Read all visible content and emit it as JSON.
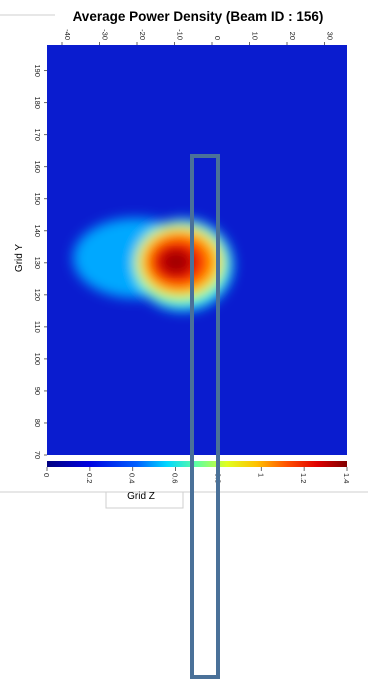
{
  "chart_data": {
    "type": "heatmap",
    "title": "Average Power Density (Beam ID : 156)",
    "xlabel": "Grid Z",
    "ylabel": "Grid Y",
    "xlim": [
      -44,
      36
    ],
    "ylim": [
      70,
      198
    ],
    "x_ticks": [
      "-40",
      "-30",
      "-20",
      "-10",
      "0",
      "10",
      "20",
      "30"
    ],
    "y_ticks": [
      "190",
      "180",
      "170",
      "160",
      "150",
      "140",
      "130",
      "120",
      "110",
      "100",
      "90",
      "80",
      "70"
    ],
    "colorbar": {
      "min": 0,
      "max": 1.4,
      "ticks": [
        "0",
        "0.2",
        "0.4",
        "0.6",
        "0.8",
        "1",
        "1.2",
        "1.4"
      ]
    },
    "hotspot": {
      "z": -8,
      "y": 130,
      "peak": 1.4
    },
    "colors": {
      "background": "#0a1ccf",
      "hot": "#c80000",
      "overlay_stroke": "#4a7199"
    }
  }
}
